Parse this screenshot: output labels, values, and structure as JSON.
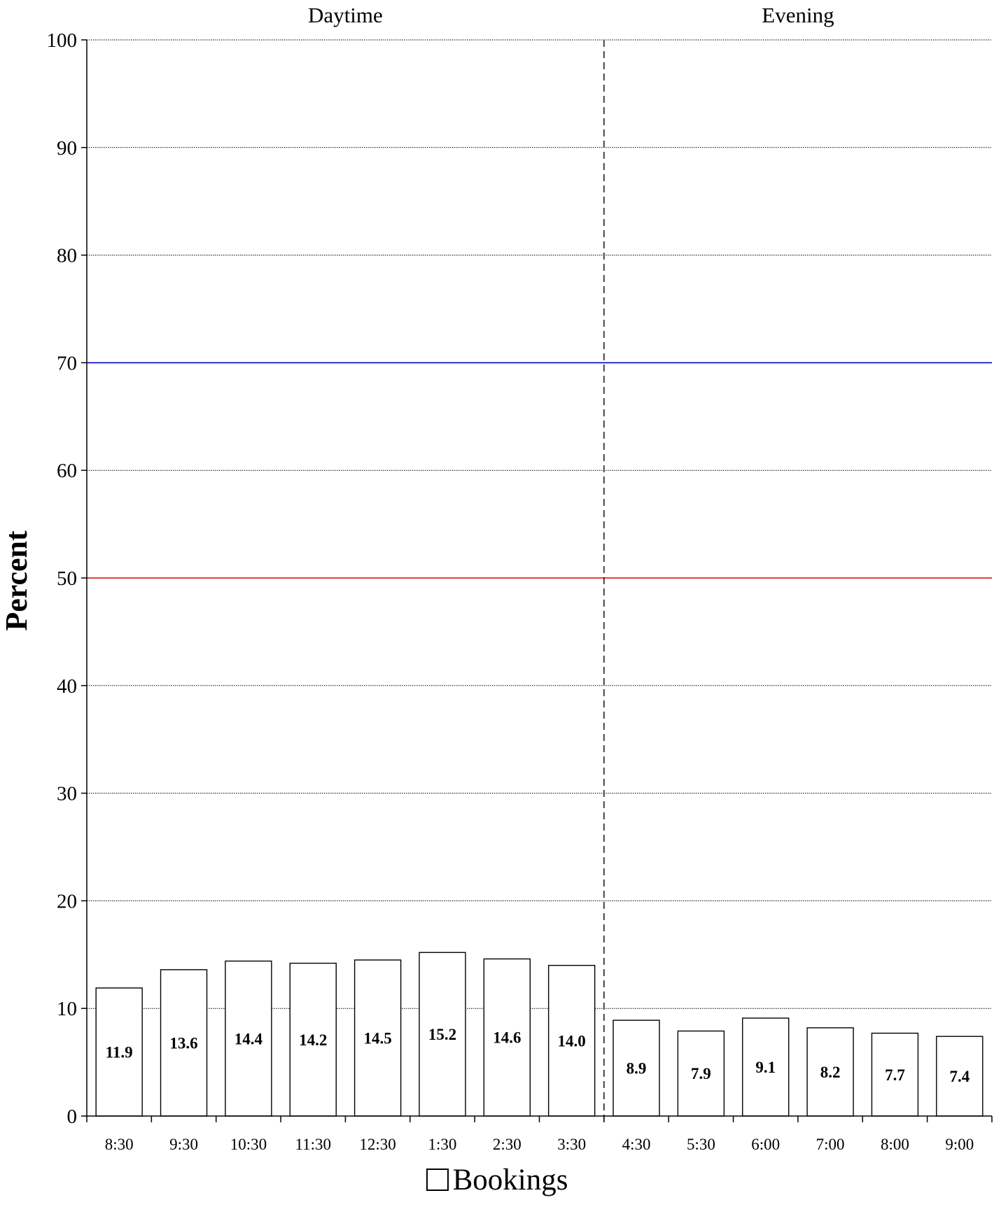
{
  "chart_data": {
    "type": "bar",
    "ylabel": "Percent",
    "ylim": [
      0,
      100
    ],
    "yticks": [
      0,
      10,
      20,
      30,
      40,
      50,
      60,
      70,
      80,
      90,
      100
    ],
    "grid": "horizontal dotted",
    "categories": [
      "8:30",
      "9:30",
      "10:30",
      "11:30",
      "12:30",
      "1:30",
      "2:30",
      "3:30",
      "4:30",
      "5:30",
      "6:00",
      "7:00",
      "8:00",
      "9:00"
    ],
    "series": [
      {
        "name": "Bookings",
        "color": "#ffffff",
        "values": [
          11.9,
          13.6,
          14.4,
          14.2,
          14.5,
          15.2,
          14.6,
          14.0,
          8.9,
          7.9,
          9.1,
          8.2,
          7.7,
          7.4
        ],
        "labels": [
          "11.9",
          "13.6",
          "14.4",
          "14.2",
          "14.5",
          "15.2",
          "14.6",
          "14.0",
          "8.9",
          "7.9",
          "9.1",
          "8.2",
          "7.7",
          "7.4"
        ]
      }
    ],
    "sections": [
      {
        "label": "Daytime",
        "categories": [
          "8:30",
          "9:30",
          "10:30",
          "11:30",
          "12:30",
          "1:30",
          "2:30",
          "3:30"
        ]
      },
      {
        "label": "Evening",
        "categories": [
          "4:30",
          "5:30",
          "6:00",
          "7:00",
          "8:00",
          "9:00"
        ]
      }
    ],
    "reference_lines": [
      {
        "y": 70,
        "color": "#0000cc"
      },
      {
        "y": 50,
        "color": "#dd0000"
      }
    ],
    "legend_position": "bottom-center"
  }
}
